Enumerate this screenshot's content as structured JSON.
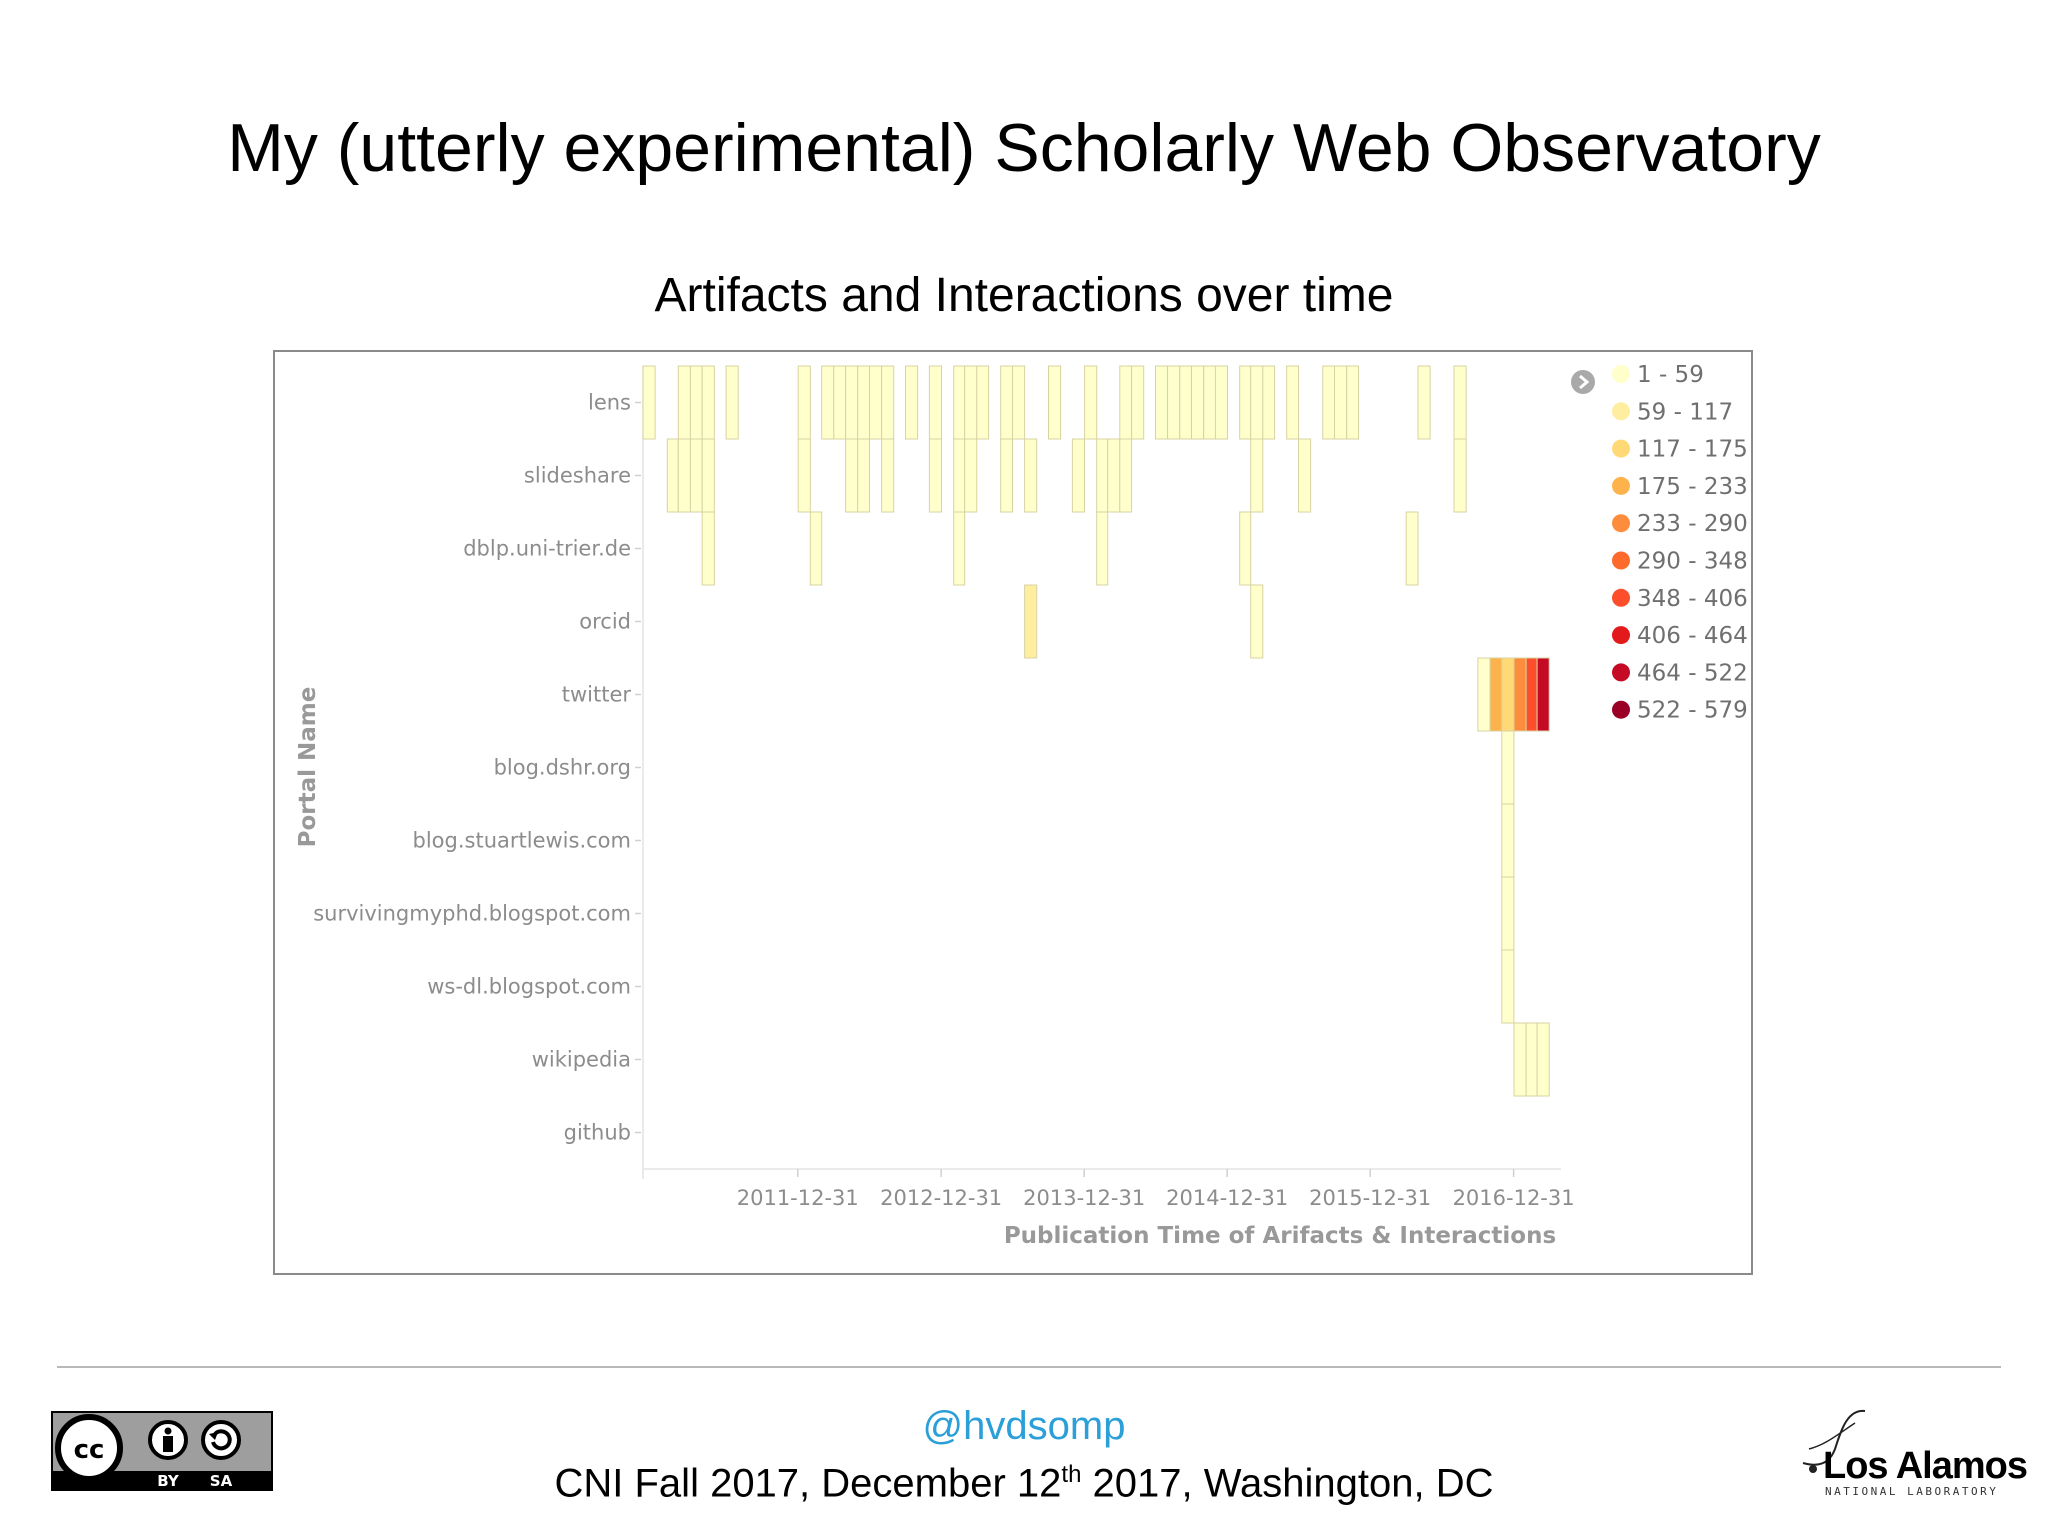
{
  "slide": {
    "title": "My (utterly experimental) Scholarly Web Observatory",
    "subtitle": "Artifacts and Interactions over time"
  },
  "footer": {
    "handle": "@hvdsomp",
    "event_part1": "CNI Fall 2017, December 12",
    "event_sup": "th",
    "event_part2": " 2017, Washington, DC",
    "license_label_by": "BY",
    "license_label_sa": "SA",
    "logo_text": "Los Alamos",
    "logo_subtext": "NATIONAL LABORATORY"
  },
  "chart_data": {
    "type": "heatmap",
    "ylabel": "Portal Name",
    "xlabel": "Publication Time of Arifacts & Interactions",
    "x_tick_labels": [
      "2011-12-31",
      "2012-12-31",
      "2013-12-31",
      "2014-12-31",
      "2015-12-31",
      "2016-12-31"
    ],
    "x_domain": [
      "2010-12-01",
      "2017-05-01"
    ],
    "categories": [
      "lens",
      "slideshare",
      "dblp.uni-trier.de",
      "orcid",
      "twitter",
      "blog.dshr.org",
      "blog.stuartlewis.com",
      "survivingmyphd.blogspot.com",
      "ws-dl.blogspot.com",
      "wikipedia",
      "github"
    ],
    "legend": {
      "position": "top-right",
      "bins": [
        {
          "label": "1 - 59",
          "color": "#ffffcc"
        },
        {
          "label": "59 - 117",
          "color": "#ffeda0"
        },
        {
          "label": "117 - 175",
          "color": "#fed976"
        },
        {
          "label": "175 - 233",
          "color": "#feb24c"
        },
        {
          "label": "233 - 290",
          "color": "#fd8d3c"
        },
        {
          "label": "290 - 348",
          "color": "#fc6b2c"
        },
        {
          "label": "348 - 406",
          "color": "#fc4e2a"
        },
        {
          "label": "406 - 464",
          "color": "#e31a1c"
        },
        {
          "label": "464 - 522",
          "color": "#c40a24"
        },
        {
          "label": "522 - 579",
          "color": "#9a0026"
        }
      ]
    },
    "cells": [
      {
        "portal": "lens",
        "start": "2010-12-01",
        "end": "2011-01-01",
        "bin": 0
      },
      {
        "portal": "lens",
        "start": "2011-03-01",
        "end": "2011-04-01",
        "bin": 0
      },
      {
        "portal": "lens",
        "start": "2011-04-01",
        "end": "2011-05-01",
        "bin": 0
      },
      {
        "portal": "lens",
        "start": "2011-05-01",
        "end": "2011-06-01",
        "bin": 0
      },
      {
        "portal": "lens",
        "start": "2011-07-01",
        "end": "2011-08-01",
        "bin": 0
      },
      {
        "portal": "lens",
        "start": "2012-01-01",
        "end": "2012-02-01",
        "bin": 0
      },
      {
        "portal": "lens",
        "start": "2012-03-01",
        "end": "2012-04-01",
        "bin": 0
      },
      {
        "portal": "lens",
        "start": "2012-04-01",
        "end": "2012-05-01",
        "bin": 0
      },
      {
        "portal": "lens",
        "start": "2012-05-01",
        "end": "2012-06-01",
        "bin": 0
      },
      {
        "portal": "lens",
        "start": "2012-06-01",
        "end": "2012-07-01",
        "bin": 0
      },
      {
        "portal": "lens",
        "start": "2012-07-01",
        "end": "2012-08-01",
        "bin": 0
      },
      {
        "portal": "lens",
        "start": "2012-08-01",
        "end": "2012-09-01",
        "bin": 0
      },
      {
        "portal": "lens",
        "start": "2012-10-01",
        "end": "2012-11-01",
        "bin": 0
      },
      {
        "portal": "lens",
        "start": "2012-12-01",
        "end": "2013-01-01",
        "bin": 0
      },
      {
        "portal": "lens",
        "start": "2013-02-01",
        "end": "2013-03-01",
        "bin": 0
      },
      {
        "portal": "lens",
        "start": "2013-03-01",
        "end": "2013-04-01",
        "bin": 0
      },
      {
        "portal": "lens",
        "start": "2013-04-01",
        "end": "2013-05-01",
        "bin": 0
      },
      {
        "portal": "lens",
        "start": "2013-06-01",
        "end": "2013-07-01",
        "bin": 0
      },
      {
        "portal": "lens",
        "start": "2013-07-01",
        "end": "2013-08-01",
        "bin": 0
      },
      {
        "portal": "lens",
        "start": "2013-10-01",
        "end": "2013-11-01",
        "bin": 0
      },
      {
        "portal": "lens",
        "start": "2014-01-01",
        "end": "2014-02-01",
        "bin": 0
      },
      {
        "portal": "lens",
        "start": "2014-04-01",
        "end": "2014-05-01",
        "bin": 0
      },
      {
        "portal": "lens",
        "start": "2014-05-01",
        "end": "2014-06-01",
        "bin": 0
      },
      {
        "portal": "lens",
        "start": "2014-07-01",
        "end": "2014-08-01",
        "bin": 0
      },
      {
        "portal": "lens",
        "start": "2014-08-01",
        "end": "2014-09-01",
        "bin": 0
      },
      {
        "portal": "lens",
        "start": "2014-09-01",
        "end": "2014-10-01",
        "bin": 0
      },
      {
        "portal": "lens",
        "start": "2014-10-01",
        "end": "2014-11-01",
        "bin": 0
      },
      {
        "portal": "lens",
        "start": "2014-11-01",
        "end": "2014-12-01",
        "bin": 0
      },
      {
        "portal": "lens",
        "start": "2014-12-01",
        "end": "2015-01-01",
        "bin": 0
      },
      {
        "portal": "lens",
        "start": "2015-02-01",
        "end": "2015-03-01",
        "bin": 0
      },
      {
        "portal": "lens",
        "start": "2015-03-01",
        "end": "2015-04-01",
        "bin": 0
      },
      {
        "portal": "lens",
        "start": "2015-04-01",
        "end": "2015-05-01",
        "bin": 0
      },
      {
        "portal": "lens",
        "start": "2015-06-01",
        "end": "2015-07-01",
        "bin": 0
      },
      {
        "portal": "lens",
        "start": "2015-09-01",
        "end": "2015-10-01",
        "bin": 0
      },
      {
        "portal": "lens",
        "start": "2015-10-01",
        "end": "2015-11-01",
        "bin": 0
      },
      {
        "portal": "lens",
        "start": "2015-11-01",
        "end": "2015-12-01",
        "bin": 0
      },
      {
        "portal": "lens",
        "start": "2016-05-01",
        "end": "2016-06-01",
        "bin": 0
      },
      {
        "portal": "lens",
        "start": "2016-08-01",
        "end": "2016-09-01",
        "bin": 0
      },
      {
        "portal": "slideshare",
        "start": "2011-02-01",
        "end": "2011-03-01",
        "bin": 0
      },
      {
        "portal": "slideshare",
        "start": "2011-03-01",
        "end": "2011-04-01",
        "bin": 0
      },
      {
        "portal": "slideshare",
        "start": "2011-04-01",
        "end": "2011-05-01",
        "bin": 0
      },
      {
        "portal": "slideshare",
        "start": "2011-05-01",
        "end": "2011-06-01",
        "bin": 0
      },
      {
        "portal": "slideshare",
        "start": "2012-01-01",
        "end": "2012-02-01",
        "bin": 0
      },
      {
        "portal": "slideshare",
        "start": "2012-05-01",
        "end": "2012-06-01",
        "bin": 0
      },
      {
        "portal": "slideshare",
        "start": "2012-06-01",
        "end": "2012-07-01",
        "bin": 0
      },
      {
        "portal": "slideshare",
        "start": "2012-08-01",
        "end": "2012-09-01",
        "bin": 0
      },
      {
        "portal": "slideshare",
        "start": "2012-12-01",
        "end": "2013-01-01",
        "bin": 0
      },
      {
        "portal": "slideshare",
        "start": "2013-02-01",
        "end": "2013-03-01",
        "bin": 0
      },
      {
        "portal": "slideshare",
        "start": "2013-03-01",
        "end": "2013-04-01",
        "bin": 0
      },
      {
        "portal": "slideshare",
        "start": "2013-06-01",
        "end": "2013-07-01",
        "bin": 0
      },
      {
        "portal": "slideshare",
        "start": "2013-08-01",
        "end": "2013-09-01",
        "bin": 0
      },
      {
        "portal": "slideshare",
        "start": "2013-12-01",
        "end": "2014-01-01",
        "bin": 0
      },
      {
        "portal": "slideshare",
        "start": "2014-02-01",
        "end": "2014-03-01",
        "bin": 0
      },
      {
        "portal": "slideshare",
        "start": "2014-03-01",
        "end": "2014-04-01",
        "bin": 0
      },
      {
        "portal": "slideshare",
        "start": "2014-04-01",
        "end": "2014-05-01",
        "bin": 0
      },
      {
        "portal": "slideshare",
        "start": "2015-03-01",
        "end": "2015-04-01",
        "bin": 0
      },
      {
        "portal": "slideshare",
        "start": "2015-07-01",
        "end": "2015-08-01",
        "bin": 0
      },
      {
        "portal": "slideshare",
        "start": "2016-08-01",
        "end": "2016-09-01",
        "bin": 0
      },
      {
        "portal": "dblp.uni-trier.de",
        "start": "2011-05-01",
        "end": "2011-06-01",
        "bin": 0
      },
      {
        "portal": "dblp.uni-trier.de",
        "start": "2012-02-01",
        "end": "2012-03-01",
        "bin": 0
      },
      {
        "portal": "dblp.uni-trier.de",
        "start": "2013-02-01",
        "end": "2013-03-01",
        "bin": 0
      },
      {
        "portal": "dblp.uni-trier.de",
        "start": "2014-02-01",
        "end": "2014-03-01",
        "bin": 0
      },
      {
        "portal": "dblp.uni-trier.de",
        "start": "2015-02-01",
        "end": "2015-03-01",
        "bin": 0
      },
      {
        "portal": "dblp.uni-trier.de",
        "start": "2016-04-01",
        "end": "2016-05-01",
        "bin": 0
      },
      {
        "portal": "orcid",
        "start": "2013-08-01",
        "end": "2013-09-01",
        "bin": 1
      },
      {
        "portal": "orcid",
        "start": "2015-03-01",
        "end": "2015-04-01",
        "bin": 0
      },
      {
        "portal": "twitter",
        "start": "2016-10-01",
        "end": "2016-11-01",
        "bin": 0
      },
      {
        "portal": "twitter",
        "start": "2016-11-01",
        "end": "2016-12-01",
        "bin": 3
      },
      {
        "portal": "twitter",
        "start": "2016-12-01",
        "end": "2017-01-01",
        "bin": 2
      },
      {
        "portal": "twitter",
        "start": "2017-01-01",
        "end": "2017-02-01",
        "bin": 4
      },
      {
        "portal": "twitter",
        "start": "2017-02-01",
        "end": "2017-03-01",
        "bin": 6
      },
      {
        "portal": "twitter",
        "start": "2017-03-01",
        "end": "2017-04-01",
        "bin": 8
      },
      {
        "portal": "blog.dshr.org",
        "start": "2016-12-01",
        "end": "2017-01-01",
        "bin": 0
      },
      {
        "portal": "blog.stuartlewis.com",
        "start": "2016-12-01",
        "end": "2017-01-01",
        "bin": 0
      },
      {
        "portal": "survivingmyphd.blogspot.com",
        "start": "2016-12-01",
        "end": "2017-01-01",
        "bin": 0
      },
      {
        "portal": "ws-dl.blogspot.com",
        "start": "2016-12-01",
        "end": "2017-01-01",
        "bin": 0
      },
      {
        "portal": "wikipedia",
        "start": "2017-01-01",
        "end": "2017-02-01",
        "bin": 0
      },
      {
        "portal": "wikipedia",
        "start": "2017-02-01",
        "end": "2017-03-01",
        "bin": 0
      },
      {
        "portal": "wikipedia",
        "start": "2017-03-01",
        "end": "2017-04-01",
        "bin": 0
      }
    ]
  }
}
